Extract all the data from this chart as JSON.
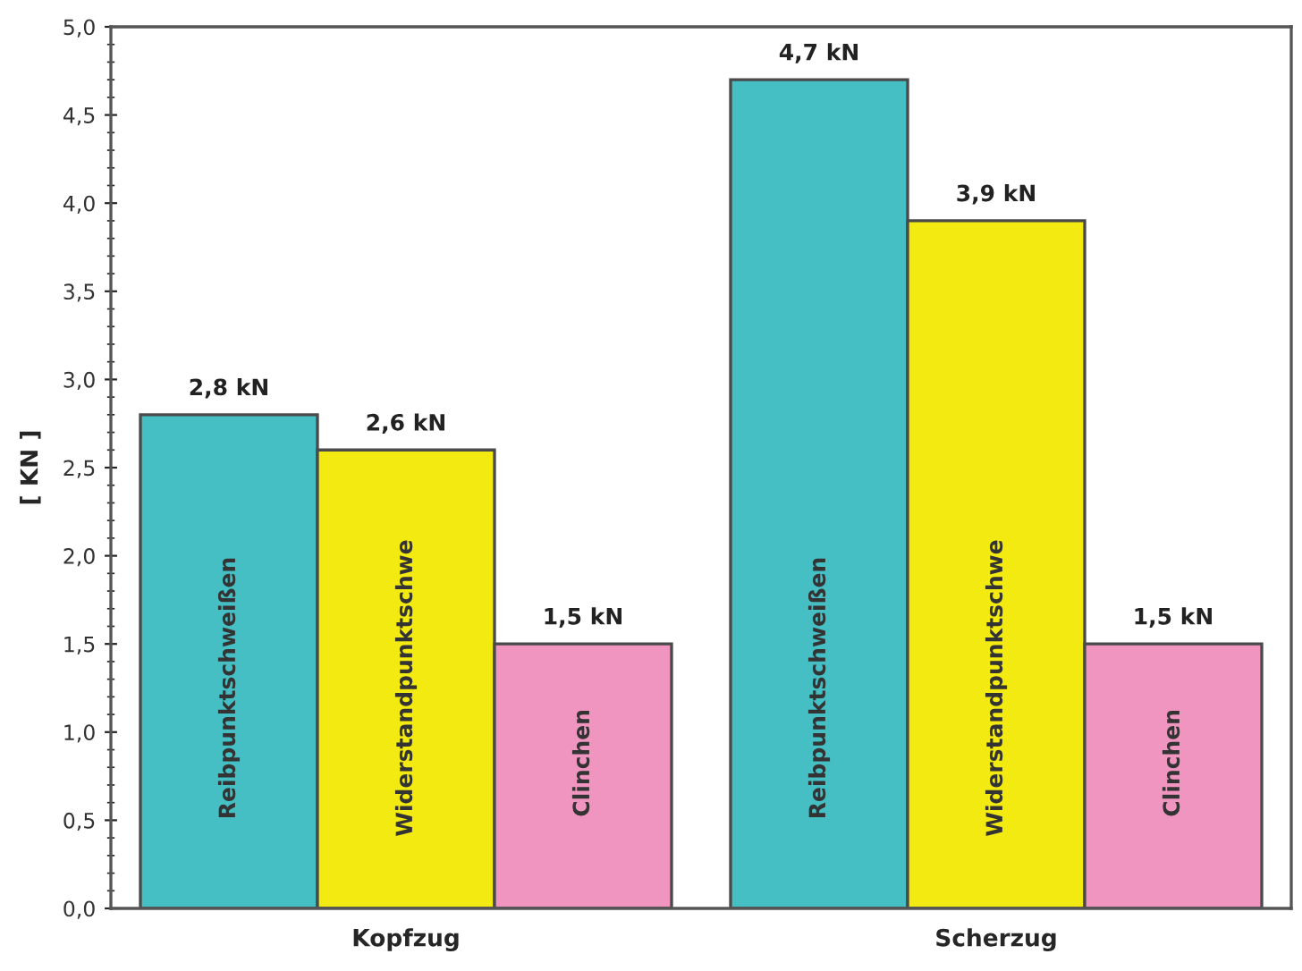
{
  "chart_data": {
    "type": "bar",
    "ylabel": "[ KN ]",
    "categories": [
      "Kopfzug",
      "Scherzug"
    ],
    "series": [
      {
        "name": "Reibpunktschweißen",
        "color": "#45bfc4",
        "values": [
          2.8,
          4.7
        ],
        "value_labels": [
          "2,8 kN",
          "4,7 kN"
        ]
      },
      {
        "name": "Widerstandpunktschwe",
        "color": "#f2ea10",
        "values": [
          2.6,
          3.9
        ],
        "value_labels": [
          "2,6 kN",
          "3,9 kN"
        ]
      },
      {
        "name": "Clinchen",
        "color": "#f095c0",
        "values": [
          1.5,
          1.5
        ],
        "value_labels": [
          "1,5 kN",
          "1,5 kN"
        ]
      }
    ],
    "ylim": [
      0,
      5
    ],
    "yticks": [
      {
        "value": 0,
        "label": "0,0"
      },
      {
        "value": 0.5,
        "label": "0,5"
      },
      {
        "value": 1,
        "label": "1,0"
      },
      {
        "value": 1.5,
        "label": "1,5"
      },
      {
        "value": 2,
        "label": "2,0"
      },
      {
        "value": 2.5,
        "label": "2,5"
      },
      {
        "value": 3,
        "label": "3,0"
      },
      {
        "value": 3.5,
        "label": "3,5"
      },
      {
        "value": 4,
        "label": "4,0"
      },
      {
        "value": 4.5,
        "label": "4,5"
      },
      {
        "value": 5,
        "label": "5,0"
      }
    ],
    "grid": false,
    "legend": false
  }
}
